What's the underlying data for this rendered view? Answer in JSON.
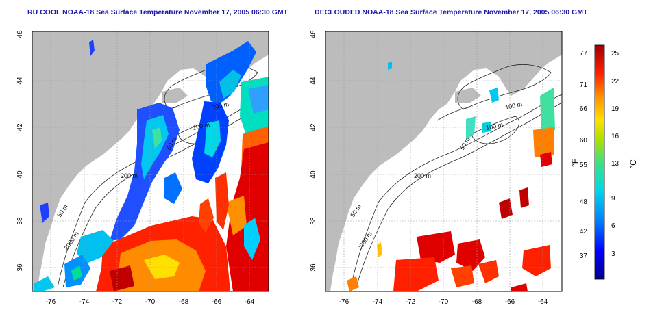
{
  "titles": {
    "left": "RU COOL NOAA-18 Sea Surface Temperature November 17, 2005 06:30 GMT",
    "right": "DECLOUDED NOAA-18 Sea Surface Temperature November 17, 2005 06:30 GMT"
  },
  "map": {
    "lat_ticks": [
      "46",
      "44",
      "42",
      "40",
      "38",
      "36"
    ],
    "lon_ticks": [
      "-76",
      "-74",
      "-72",
      "-70",
      "-68",
      "-66",
      "-64"
    ],
    "contour_labels": [
      "100 m",
      "100 m",
      "50 m",
      "200 m",
      "50 m",
      "2000 m"
    ],
    "colors": {
      "land": "#bcbcbc",
      "ocean": "#ffffff",
      "contour": "#222222",
      "grid": "#9a9a9a"
    }
  },
  "colorbar": {
    "fahrenheit_ticks": [
      "77",
      "71",
      "66",
      "60",
      "55",
      "48",
      "42",
      "37"
    ],
    "celsius_ticks": [
      "25",
      "22",
      "19",
      "16",
      "13",
      "9",
      "6",
      "3"
    ],
    "fahrenheit_unit": "°F",
    "celsius_unit": "°C",
    "gradient": [
      "#00008c",
      "#0000ff",
      "#0090ff",
      "#00e0e0",
      "#40e080",
      "#c0e000",
      "#ffe000",
      "#ff8000",
      "#ff2000",
      "#a00000"
    ]
  }
}
